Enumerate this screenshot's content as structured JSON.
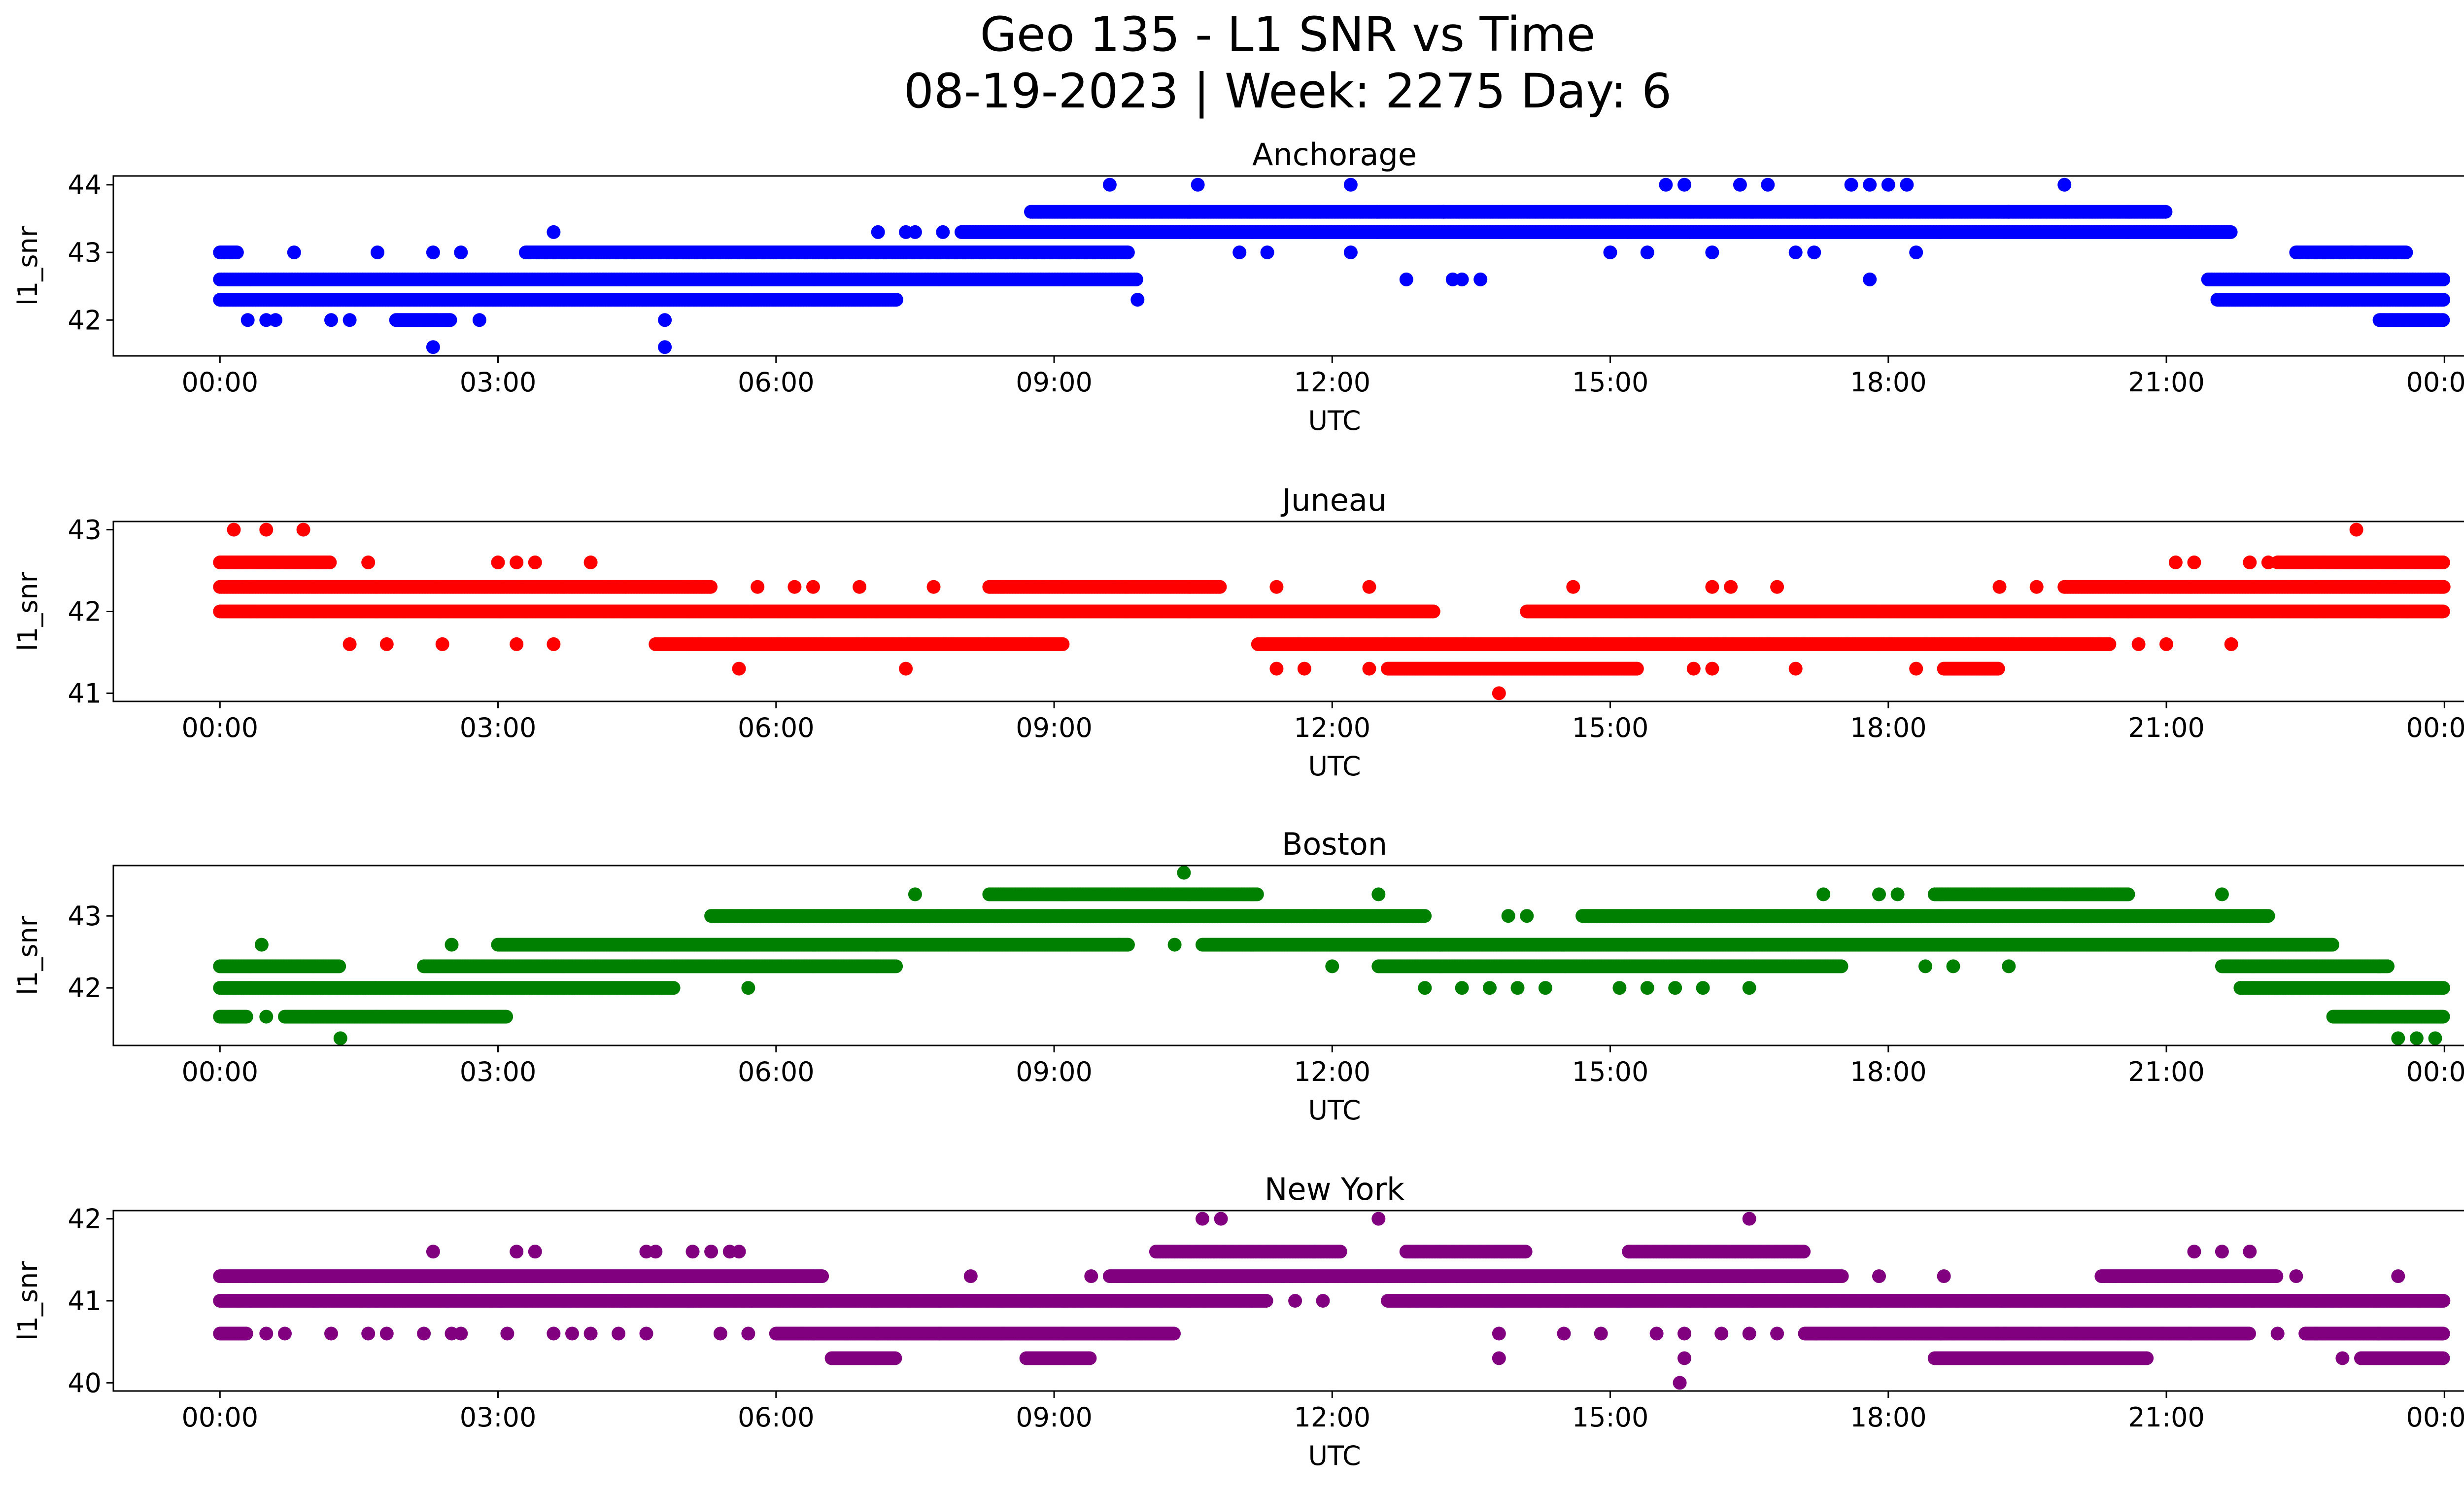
{
  "figure": {
    "title_line1": "Geo 135 - L1 SNR vs Time",
    "title_line2": "08-19-2023 | Week: 2275 Day: 6"
  },
  "chart_data": [
    {
      "type": "scatter",
      "title": "Anchorage",
      "xlabel": "UTC",
      "ylabel": "l1_snr",
      "color": "#0000ff",
      "xlim_hours": [
        -1.15,
        25.2
      ],
      "ylim": [
        41.47,
        44.13
      ],
      "xticks": [
        "00:00",
        "03:00",
        "06:00",
        "09:00",
        "12:00",
        "15:00",
        "18:00",
        "21:00",
        "00:00"
      ],
      "yticks": [
        42,
        43,
        44
      ],
      "levels": [
        {
          "y": 43.6,
          "segments": [
            [
              8.75,
              21.0
            ]
          ]
        },
        {
          "y": 43.3,
          "segments": [
            [
              8.0,
              21.7
            ]
          ]
        },
        {
          "y": 43.0,
          "segments": [
            [
              0.0,
              0.2
            ],
            [
              3.3,
              9.8
            ],
            [
              22.4,
              23.6
            ]
          ]
        },
        {
          "y": 42.6,
          "segments": [
            [
              0.0,
              9.9
            ],
            [
              21.45,
              24.0
            ]
          ]
        },
        {
          "y": 42.3,
          "segments": [
            [
              0.0,
              7.3
            ],
            [
              21.55,
              24.0
            ]
          ]
        },
        {
          "y": 42.0,
          "segments": [
            [
              1.9,
              2.5
            ],
            [
              23.3,
              24.0
            ]
          ]
        }
      ],
      "points": [
        {
          "x": 0.3,
          "y": 42.0
        },
        {
          "x": 0.5,
          "y": 42.0
        },
        {
          "x": 0.6,
          "y": 42.0
        },
        {
          "x": 1.2,
          "y": 42.0
        },
        {
          "x": 1.4,
          "y": 42.0
        },
        {
          "x": 2.3,
          "y": 41.6
        },
        {
          "x": 4.8,
          "y": 41.6
        },
        {
          "x": 4.8,
          "y": 42.0
        },
        {
          "x": 2.8,
          "y": 42.0
        },
        {
          "x": 3.6,
          "y": 43.3
        },
        {
          "x": 1.7,
          "y": 43.0
        },
        {
          "x": 2.3,
          "y": 43.0
        },
        {
          "x": 2.6,
          "y": 43.0
        },
        {
          "x": 0.8,
          "y": 43.0
        },
        {
          "x": 7.1,
          "y": 43.3
        },
        {
          "x": 7.4,
          "y": 43.3
        },
        {
          "x": 7.5,
          "y": 43.3
        },
        {
          "x": 7.8,
          "y": 43.3
        },
        {
          "x": 9.6,
          "y": 44.0
        },
        {
          "x": 10.55,
          "y": 44.0
        },
        {
          "x": 12.2,
          "y": 44.0
        },
        {
          "x": 9.9,
          "y": 42.3
        },
        {
          "x": 12.8,
          "y": 42.6
        },
        {
          "x": 13.3,
          "y": 42.6
        },
        {
          "x": 13.4,
          "y": 42.6
        },
        {
          "x": 13.6,
          "y": 42.6
        },
        {
          "x": 13.2,
          "y": 43.6
        },
        {
          "x": 12.2,
          "y": 43.0
        },
        {
          "x": 11.0,
          "y": 43.0
        },
        {
          "x": 11.3,
          "y": 43.0
        },
        {
          "x": 15.6,
          "y": 44.0
        },
        {
          "x": 15.8,
          "y": 44.0
        },
        {
          "x": 16.4,
          "y": 44.0
        },
        {
          "x": 16.7,
          "y": 44.0
        },
        {
          "x": 17.6,
          "y": 44.0
        },
        {
          "x": 17.8,
          "y": 44.0
        },
        {
          "x": 18.0,
          "y": 44.0
        },
        {
          "x": 18.2,
          "y": 44.0
        },
        {
          "x": 19.9,
          "y": 44.0
        },
        {
          "x": 17.8,
          "y": 42.6
        },
        {
          "x": 16.1,
          "y": 43.0
        },
        {
          "x": 17.0,
          "y": 43.0
        },
        {
          "x": 17.2,
          "y": 43.0
        },
        {
          "x": 18.3,
          "y": 43.0
        },
        {
          "x": 15.4,
          "y": 43.0
        },
        {
          "x": 15.0,
          "y": 43.0
        },
        {
          "x": 19.3,
          "y": 43.6
        },
        {
          "x": 23.0,
          "y": 43.0
        },
        {
          "x": 23.15,
          "y": 43.0
        }
      ]
    },
    {
      "type": "scatter",
      "title": "Juneau",
      "xlabel": "UTC",
      "ylabel": "l1_snr",
      "color": "#ff0000",
      "xlim_hours": [
        -1.15,
        25.2
      ],
      "ylim": [
        40.9,
        43.1
      ],
      "xticks": [
        "00:00",
        "03:00",
        "06:00",
        "09:00",
        "12:00",
        "15:00",
        "18:00",
        "21:00",
        "00:00"
      ],
      "yticks": [
        41,
        42,
        43
      ],
      "levels": [
        {
          "y": 42.6,
          "segments": [
            [
              0.0,
              1.2
            ],
            [
              22.2,
              24.0
            ]
          ]
        },
        {
          "y": 42.3,
          "segments": [
            [
              0.0,
              5.3
            ],
            [
              8.3,
              10.8
            ],
            [
              19.9,
              24.0
            ]
          ]
        },
        {
          "y": 42.0,
          "segments": [
            [
              0.0,
              13.1
            ],
            [
              14.1,
              24.0
            ]
          ]
        },
        {
          "y": 41.6,
          "segments": [
            [
              4.7,
              9.1
            ],
            [
              11.2,
              20.4
            ]
          ]
        },
        {
          "y": 41.3,
          "segments": [
            [
              12.6,
              15.3
            ],
            [
              18.6,
              19.2
            ]
          ]
        }
      ],
      "points": [
        {
          "x": 0.15,
          "y": 43.0
        },
        {
          "x": 0.5,
          "y": 43.0
        },
        {
          "x": 0.9,
          "y": 43.0
        },
        {
          "x": 23.05,
          "y": 43.0
        },
        {
          "x": 1.6,
          "y": 42.6
        },
        {
          "x": 3.0,
          "y": 42.6
        },
        {
          "x": 3.2,
          "y": 42.6
        },
        {
          "x": 3.4,
          "y": 42.6
        },
        {
          "x": 4.0,
          "y": 42.6
        },
        {
          "x": 21.1,
          "y": 42.6
        },
        {
          "x": 21.3,
          "y": 42.6
        },
        {
          "x": 21.9,
          "y": 42.6
        },
        {
          "x": 22.1,
          "y": 42.6
        },
        {
          "x": 5.8,
          "y": 42.3
        },
        {
          "x": 6.2,
          "y": 42.3
        },
        {
          "x": 6.4,
          "y": 42.3
        },
        {
          "x": 6.9,
          "y": 42.3
        },
        {
          "x": 7.7,
          "y": 42.3
        },
        {
          "x": 11.4,
          "y": 42.3
        },
        {
          "x": 12.4,
          "y": 42.3
        },
        {
          "x": 14.6,
          "y": 42.3
        },
        {
          "x": 16.1,
          "y": 42.3
        },
        {
          "x": 16.3,
          "y": 42.3
        },
        {
          "x": 16.8,
          "y": 42.3
        },
        {
          "x": 19.2,
          "y": 42.3
        },
        {
          "x": 19.6,
          "y": 42.3
        },
        {
          "x": 1.4,
          "y": 41.6
        },
        {
          "x": 1.8,
          "y": 41.6
        },
        {
          "x": 2.4,
          "y": 41.6
        },
        {
          "x": 3.2,
          "y": 41.6
        },
        {
          "x": 3.6,
          "y": 41.6
        },
        {
          "x": 20.7,
          "y": 41.6
        },
        {
          "x": 21.0,
          "y": 41.6
        },
        {
          "x": 21.7,
          "y": 41.6
        },
        {
          "x": 5.6,
          "y": 41.3
        },
        {
          "x": 7.4,
          "y": 41.3
        },
        {
          "x": 11.4,
          "y": 41.3
        },
        {
          "x": 11.7,
          "y": 41.3
        },
        {
          "x": 12.4,
          "y": 41.3
        },
        {
          "x": 16.1,
          "y": 41.3
        },
        {
          "x": 17.0,
          "y": 41.3
        },
        {
          "x": 18.3,
          "y": 41.3
        },
        {
          "x": 15.9,
          "y": 41.3
        },
        {
          "x": 13.8,
          "y": 41.0
        },
        {
          "x": 0.4,
          "y": 42.0
        },
        {
          "x": 23.3,
          "y": 42.0
        },
        {
          "x": 23.6,
          "y": 42.0
        }
      ]
    },
    {
      "type": "scatter",
      "title": "Boston",
      "xlabel": "UTC",
      "ylabel": "l1_snr",
      "color": "#008000",
      "xlim_hours": [
        -1.15,
        25.2
      ],
      "ylim": [
        41.2,
        43.7
      ],
      "xticks": [
        "00:00",
        "03:00",
        "06:00",
        "09:00",
        "12:00",
        "15:00",
        "18:00",
        "21:00",
        "00:00"
      ],
      "yticks": [
        42,
        43
      ],
      "levels": [
        {
          "y": 43.3,
          "segments": [
            [
              8.3,
              11.2
            ],
            [
              18.5,
              20.6
            ]
          ]
        },
        {
          "y": 43.0,
          "segments": [
            [
              5.3,
              13.0
            ],
            [
              14.7,
              22.1
            ]
          ]
        },
        {
          "y": 42.6,
          "segments": [
            [
              3.0,
              9.8
            ],
            [
              10.6,
              22.8
            ]
          ]
        },
        {
          "y": 42.3,
          "segments": [
            [
              0.0,
              1.3
            ],
            [
              2.2,
              7.3
            ],
            [
              12.5,
              17.5
            ],
            [
              21.6,
              23.4
            ]
          ]
        },
        {
          "y": 42.0,
          "segments": [
            [
              0.0,
              4.9
            ],
            [
              21.8,
              24.0
            ]
          ]
        },
        {
          "y": 41.6,
          "segments": [
            [
              0.0,
              0.3
            ],
            [
              0.7,
              3.1
            ],
            [
              22.8,
              24.0
            ]
          ]
        }
      ],
      "points": [
        {
          "x": 0.45,
          "y": 42.6
        },
        {
          "x": 2.5,
          "y": 42.6
        },
        {
          "x": 0.5,
          "y": 41.6
        },
        {
          "x": 1.3,
          "y": 41.3
        },
        {
          "x": 23.5,
          "y": 41.3
        },
        {
          "x": 23.7,
          "y": 41.3
        },
        {
          "x": 23.9,
          "y": 41.3
        },
        {
          "x": 5.7,
          "y": 42.0
        },
        {
          "x": 7.5,
          "y": 43.3
        },
        {
          "x": 10.4,
          "y": 43.6
        },
        {
          "x": 12.5,
          "y": 43.3
        },
        {
          "x": 9.7,
          "y": 42.6
        },
        {
          "x": 10.3,
          "y": 42.6
        },
        {
          "x": 12.0,
          "y": 42.3
        },
        {
          "x": 13.0,
          "y": 42.0
        },
        {
          "x": 13.4,
          "y": 42.0
        },
        {
          "x": 13.7,
          "y": 42.0
        },
        {
          "x": 14.0,
          "y": 42.0
        },
        {
          "x": 14.3,
          "y": 42.0
        },
        {
          "x": 15.1,
          "y": 42.0
        },
        {
          "x": 15.4,
          "y": 42.0
        },
        {
          "x": 15.7,
          "y": 42.0
        },
        {
          "x": 16.0,
          "y": 42.0
        },
        {
          "x": 16.5,
          "y": 42.0
        },
        {
          "x": 13.9,
          "y": 43.0
        },
        {
          "x": 14.1,
          "y": 43.0
        },
        {
          "x": 17.3,
          "y": 43.3
        },
        {
          "x": 17.9,
          "y": 43.3
        },
        {
          "x": 18.1,
          "y": 43.3
        },
        {
          "x": 21.6,
          "y": 43.3
        },
        {
          "x": 18.4,
          "y": 42.3
        },
        {
          "x": 18.7,
          "y": 42.3
        },
        {
          "x": 19.3,
          "y": 42.3
        },
        {
          "x": 21.8,
          "y": 42.0
        },
        {
          "x": 23.3,
          "y": 42.3
        }
      ]
    },
    {
      "type": "scatter",
      "title": "New York",
      "xlabel": "UTC",
      "ylabel": "l1_snr",
      "color": "#800080",
      "xlim_hours": [
        -1.15,
        25.2
      ],
      "ylim": [
        39.9,
        42.1
      ],
      "xticks": [
        "00:00",
        "03:00",
        "06:00",
        "09:00",
        "12:00",
        "15:00",
        "18:00",
        "21:00",
        "00:00"
      ],
      "yticks": [
        40,
        41,
        42
      ],
      "levels": [
        {
          "y": 41.6,
          "segments": [
            [
              10.1,
              12.1
            ],
            [
              12.8,
              14.1
            ],
            [
              15.2,
              17.1
            ]
          ]
        },
        {
          "y": 41.3,
          "segments": [
            [
              0.0,
              6.5
            ],
            [
              9.6,
              17.5
            ],
            [
              20.3,
              22.2
            ]
          ]
        },
        {
          "y": 41.0,
          "segments": [
            [
              0.0,
              11.3
            ],
            [
              12.6,
              24.0
            ]
          ]
        },
        {
          "y": 40.6,
          "segments": [
            [
              0.0,
              0.3
            ],
            [
              6.0,
              10.3
            ],
            [
              17.1,
              21.9
            ],
            [
              22.5,
              24.0
            ]
          ]
        },
        {
          "y": 40.3,
          "segments": [
            [
              6.6,
              7.3
            ],
            [
              8.7,
              9.4
            ],
            [
              18.5,
              20.8
            ],
            [
              23.1,
              24.0
            ]
          ]
        }
      ],
      "points": [
        {
          "x": 2.3,
          "y": 41.6
        },
        {
          "x": 3.2,
          "y": 41.6
        },
        {
          "x": 3.4,
          "y": 41.6
        },
        {
          "x": 4.6,
          "y": 41.6
        },
        {
          "x": 4.7,
          "y": 41.6
        },
        {
          "x": 5.1,
          "y": 41.6
        },
        {
          "x": 5.3,
          "y": 41.6
        },
        {
          "x": 5.5,
          "y": 41.6
        },
        {
          "x": 5.6,
          "y": 41.6
        },
        {
          "x": 8.1,
          "y": 41.3
        },
        {
          "x": 9.4,
          "y": 41.3
        },
        {
          "x": 10.6,
          "y": 42.0
        },
        {
          "x": 10.8,
          "y": 42.0
        },
        {
          "x": 12.5,
          "y": 42.0
        },
        {
          "x": 16.5,
          "y": 42.0
        },
        {
          "x": 11.6,
          "y": 41.0
        },
        {
          "x": 11.9,
          "y": 41.0
        },
        {
          "x": 0.5,
          "y": 40.6
        },
        {
          "x": 0.7,
          "y": 40.6
        },
        {
          "x": 1.2,
          "y": 40.6
        },
        {
          "x": 1.6,
          "y": 40.6
        },
        {
          "x": 1.8,
          "y": 40.6
        },
        {
          "x": 2.2,
          "y": 40.6
        },
        {
          "x": 2.5,
          "y": 40.6
        },
        {
          "x": 2.6,
          "y": 40.6
        },
        {
          "x": 3.1,
          "y": 40.6
        },
        {
          "x": 3.6,
          "y": 40.6
        },
        {
          "x": 3.8,
          "y": 40.6
        },
        {
          "x": 4.0,
          "y": 40.6
        },
        {
          "x": 4.3,
          "y": 40.6
        },
        {
          "x": 4.6,
          "y": 40.6
        },
        {
          "x": 5.4,
          "y": 40.6
        },
        {
          "x": 5.7,
          "y": 40.6
        },
        {
          "x": 13.8,
          "y": 40.6
        },
        {
          "x": 13.8,
          "y": 40.3
        },
        {
          "x": 14.5,
          "y": 40.6
        },
        {
          "x": 14.9,
          "y": 40.6
        },
        {
          "x": 15.5,
          "y": 40.6
        },
        {
          "x": 15.8,
          "y": 40.6
        },
        {
          "x": 15.8,
          "y": 40.3
        },
        {
          "x": 15.75,
          "y": 40.0
        },
        {
          "x": 16.2,
          "y": 40.6
        },
        {
          "x": 16.5,
          "y": 40.6
        },
        {
          "x": 16.8,
          "y": 40.6
        },
        {
          "x": 17.9,
          "y": 41.3
        },
        {
          "x": 18.6,
          "y": 41.3
        },
        {
          "x": 21.3,
          "y": 41.6
        },
        {
          "x": 21.6,
          "y": 41.6
        },
        {
          "x": 21.9,
          "y": 41.6
        },
        {
          "x": 22.4,
          "y": 41.3
        },
        {
          "x": 23.5,
          "y": 41.3
        },
        {
          "x": 22.2,
          "y": 40.6
        },
        {
          "x": 22.9,
          "y": 40.3
        }
      ]
    }
  ]
}
